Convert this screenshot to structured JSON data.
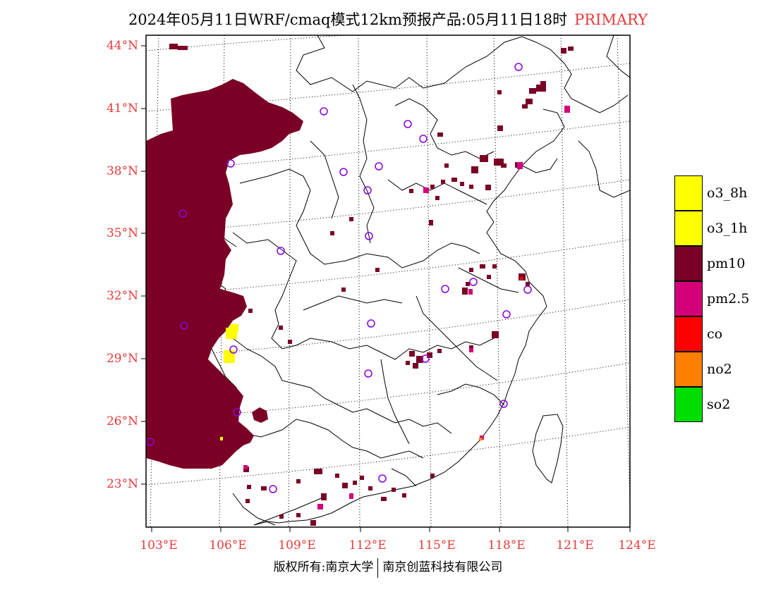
{
  "header": {
    "title": "2024年05月11日WRF/cmaq模式12km预报产品:05月11日18时",
    "tag": "PRIMARY"
  },
  "map": {
    "lat_labels": [
      "44°N",
      "41°N",
      "38°N",
      "35°N",
      "32°N",
      "29°N",
      "26°N",
      "23°N"
    ],
    "lon_labels": [
      "103°E",
      "106°E",
      "109°E",
      "112°E",
      "115°E",
      "118°E",
      "121°E",
      "124°E"
    ],
    "colors": {
      "pm10": "#7a0026",
      "pm25": "#d4007a",
      "o3": "#ffff00",
      "co": "#ff0000",
      "no2": "#ff7f00",
      "so2": "#00dd00",
      "station": "#8800dd"
    }
  },
  "legend": {
    "items": [
      {
        "label": "o3_8h",
        "color": "#ffff00"
      },
      {
        "label": "o3_1h",
        "color": "#ffff00"
      },
      {
        "label": "pm10",
        "color": "#7a0026"
      },
      {
        "label": "pm2.5",
        "color": "#d4007a"
      },
      {
        "label": "co",
        "color": "#ff0000"
      },
      {
        "label": "no2",
        "color": "#ff7f00"
      },
      {
        "label": "so2",
        "color": "#00dd00"
      }
    ]
  },
  "footer": {
    "left": "版权所有:南京大学",
    "right": "南京创蓝科技有限公司"
  }
}
